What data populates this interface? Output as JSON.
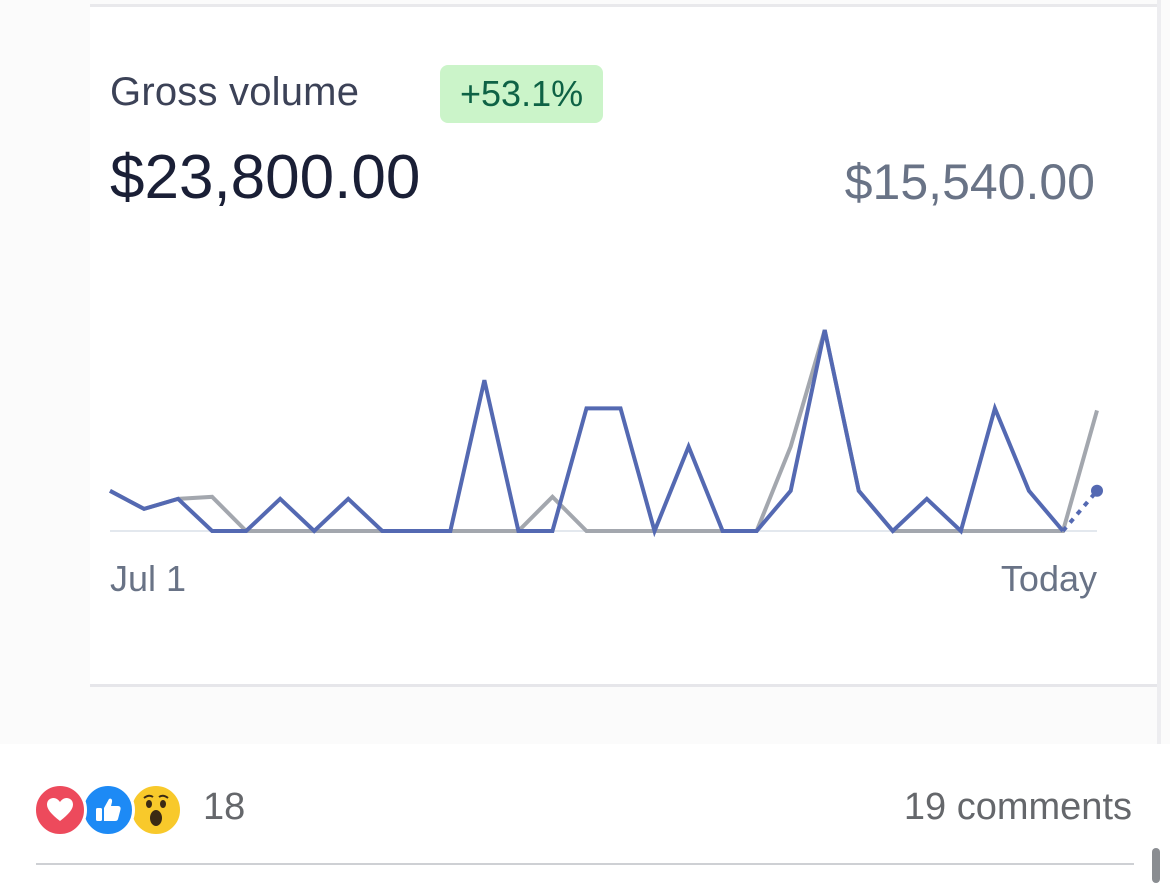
{
  "metric": {
    "title": "Gross volume",
    "change_badge": "+53.1%",
    "current_total": "$23,800.00",
    "previous_total": "$15,540.00"
  },
  "colors": {
    "current_series": "#5469b2",
    "previous_series": "#a3a7ae",
    "badge_background": "#cbf4c9",
    "badge_text": "#0e6245"
  },
  "chart_data": {
    "type": "line",
    "xlabel": "",
    "ylabel": "",
    "x_tick_labels": [
      "Jul 1",
      "Today"
    ],
    "grid": false,
    "legend": "none",
    "ylim": [
      0,
      100
    ],
    "series": [
      {
        "values": [
          20,
          11,
          16,
          0,
          0,
          16,
          0,
          16,
          0,
          0,
          0,
          75,
          0,
          0,
          61,
          61,
          0,
          42,
          0,
          0,
          20,
          100,
          20,
          0,
          16,
          0,
          61,
          20,
          0
        ],
        "pending_last_value": 20
      },
      {
        "values": [
          20,
          11,
          16,
          17,
          0,
          0,
          0,
          0,
          0,
          0,
          0,
          0,
          0,
          17,
          0,
          0,
          0,
          0,
          0,
          0,
          42,
          100,
          20,
          0,
          0,
          0,
          0,
          0,
          0,
          60
        ]
      }
    ]
  },
  "reactions": {
    "icons": [
      "love-icon",
      "like-icon",
      "wow-icon"
    ],
    "count": "18"
  },
  "comments": {
    "label": "19 comments"
  }
}
